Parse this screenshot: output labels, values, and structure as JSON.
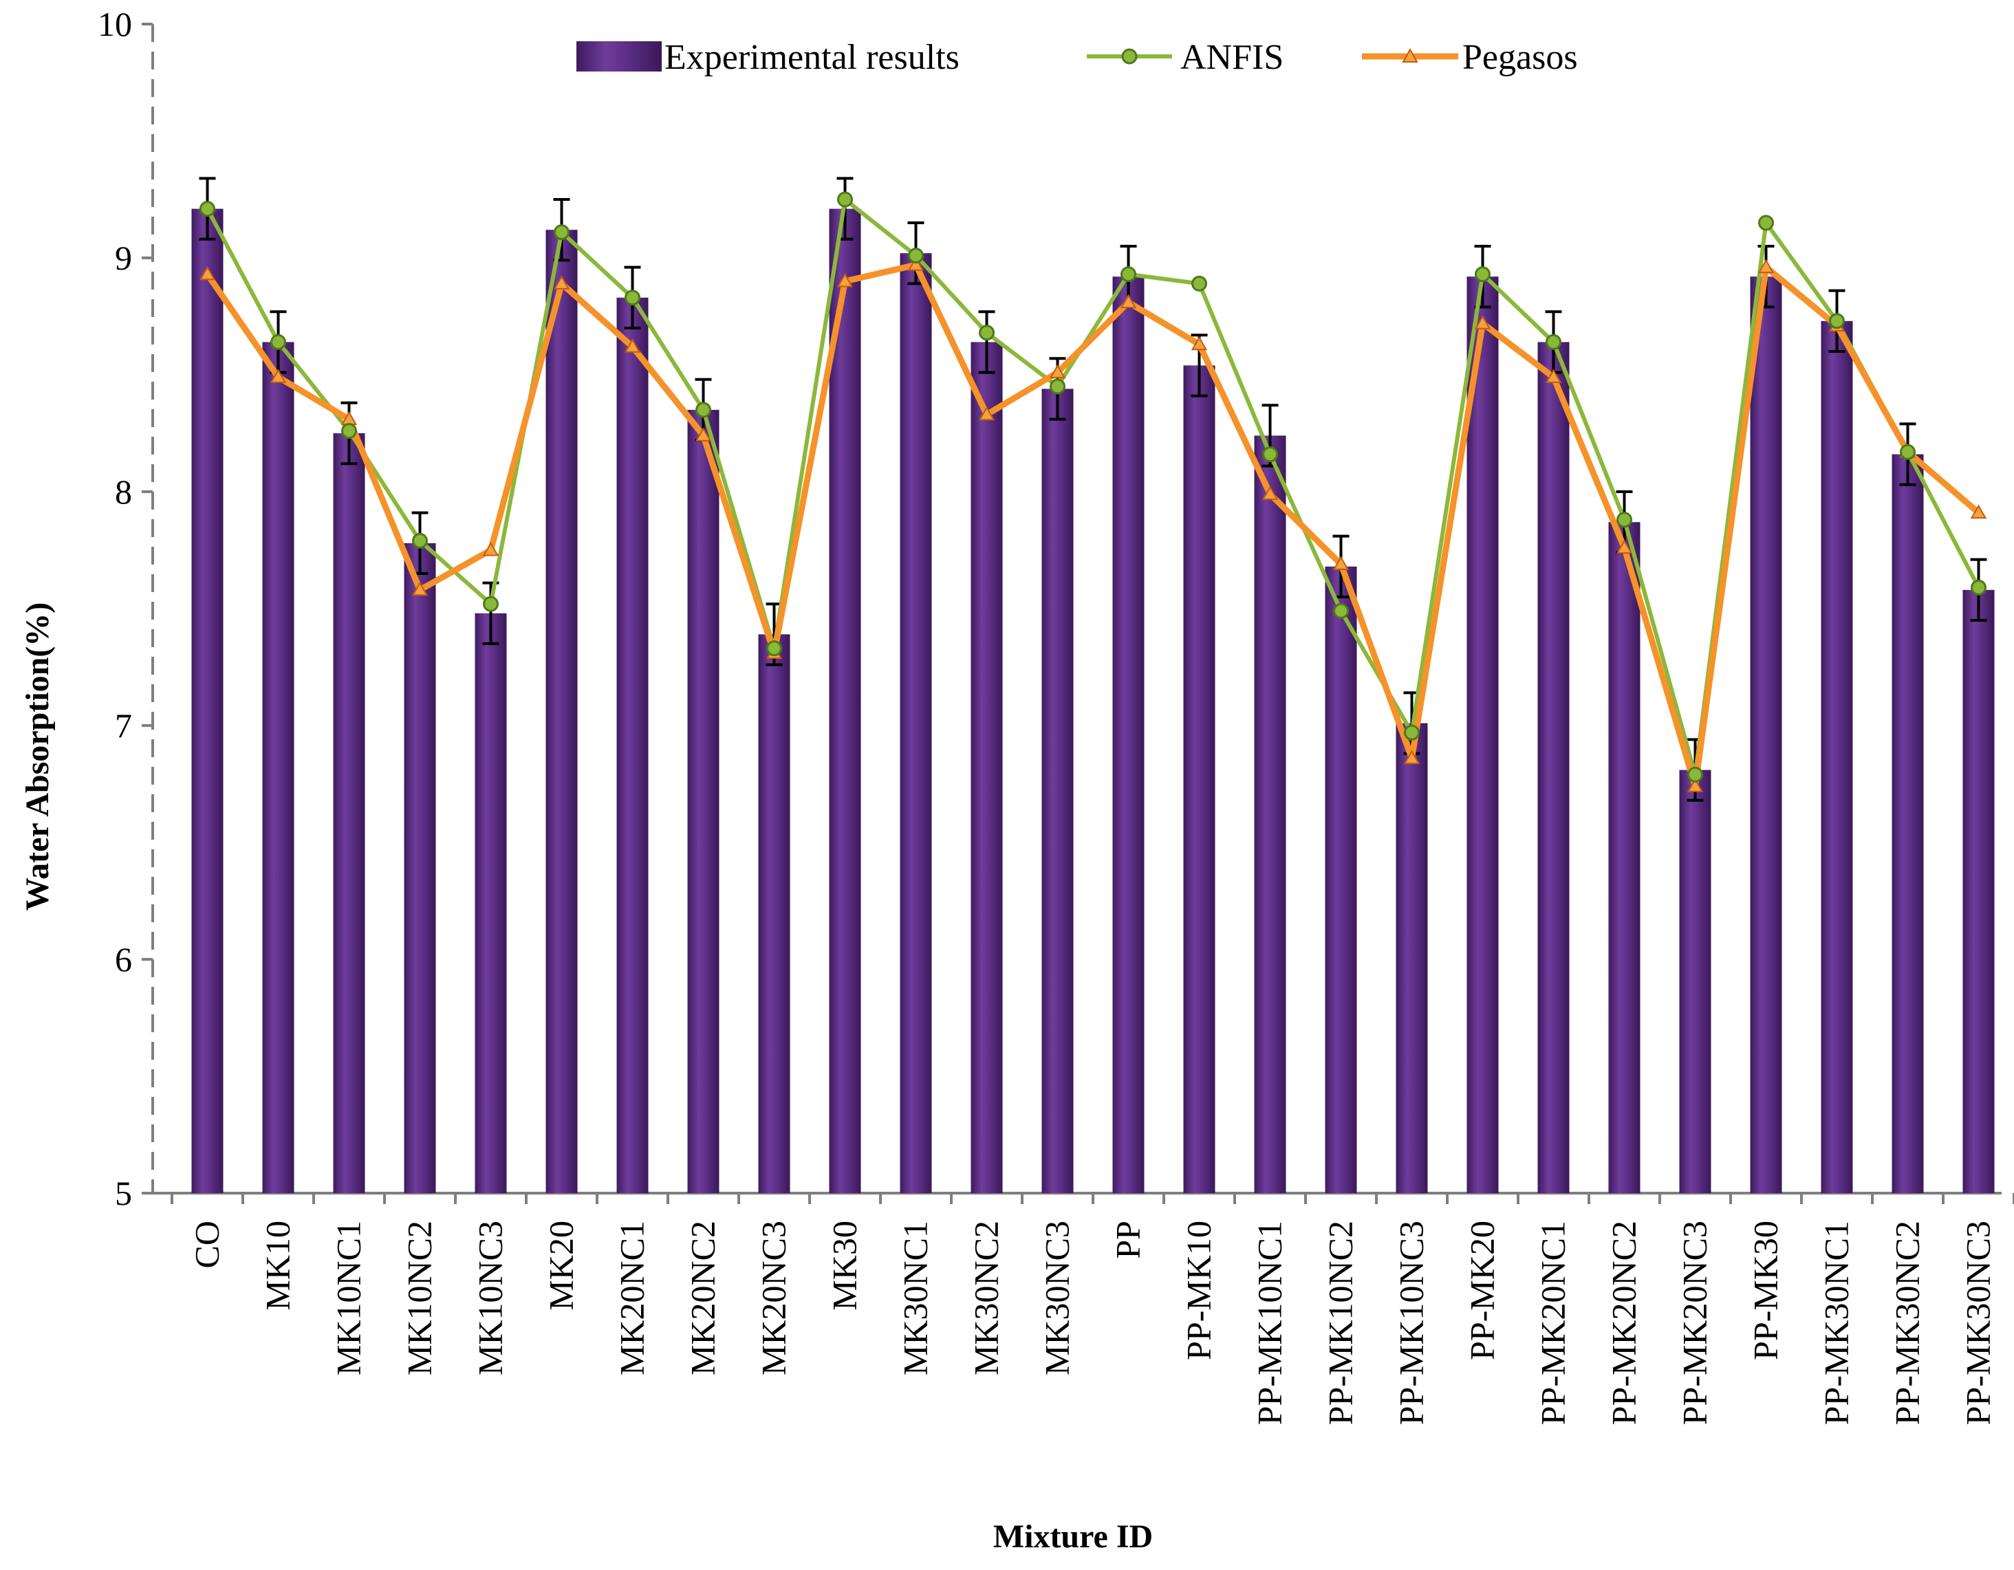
{
  "chart_data": {
    "type": "bar",
    "title": "",
    "xlabel": "Mixture ID",
    "ylabel": "Water Absorption(%)",
    "ylim": [
      5,
      10
    ],
    "yticks": [
      5,
      6,
      7,
      8,
      9,
      10
    ],
    "grid": false,
    "legend_position": "top-center",
    "categories": [
      "CO",
      "MK10",
      "MK10NC1",
      "MK10NC2",
      "MK10NC3",
      "MK20",
      "MK20NC1",
      "MK20NC2",
      "MK20NC3",
      "MK30",
      "MK30NC1",
      "MK30NC2",
      "MK30NC3",
      "PP",
      "PP-MK10",
      "PP-MK10NC1",
      "PP-MK10NC2",
      "PP-MK10NC3",
      "PP-MK20",
      "PP-MK20NC1",
      "PP-MK20NC2",
      "PP-MK20NC3",
      "PP-MK30",
      "PP-MK30NC1",
      "PP-MK30NC2",
      "PP-MK30NC3"
    ],
    "series": [
      {
        "name": "Experimental results",
        "kind": "bar",
        "color": "#5B2C83",
        "values": [
          9.21,
          8.64,
          8.25,
          7.78,
          7.48,
          9.12,
          8.83,
          8.35,
          7.39,
          9.21,
          9.02,
          8.64,
          8.44,
          8.92,
          8.54,
          8.24,
          7.68,
          7.01,
          8.92,
          8.64,
          7.87,
          6.81,
          8.92,
          8.73,
          8.16,
          7.58
        ],
        "error": [
          0.13,
          0.13,
          0.13,
          0.13,
          0.13,
          0.13,
          0.13,
          0.13,
          0.13,
          0.13,
          0.13,
          0.13,
          0.13,
          0.13,
          0.13,
          0.13,
          0.13,
          0.13,
          0.13,
          0.13,
          0.13,
          0.13,
          0.13,
          0.13,
          0.13,
          0.13
        ]
      },
      {
        "name": "ANFIS",
        "kind": "line",
        "marker": "circle",
        "color": "#8BB83A",
        "values": [
          9.21,
          8.64,
          8.26,
          7.79,
          7.52,
          9.11,
          8.83,
          8.35,
          7.33,
          9.25,
          9.01,
          8.68,
          8.45,
          8.93,
          8.89,
          8.16,
          7.49,
          6.97,
          8.93,
          8.64,
          7.88,
          6.79,
          9.15,
          8.73,
          8.17,
          7.59
        ]
      },
      {
        "name": "Pegasos",
        "kind": "line",
        "marker": "triangle",
        "color": "#F5922A",
        "values": [
          8.93,
          8.49,
          8.31,
          7.58,
          7.75,
          8.89,
          8.62,
          8.24,
          7.31,
          8.9,
          8.97,
          8.33,
          8.51,
          8.81,
          8.63,
          7.99,
          7.69,
          6.86,
          8.72,
          8.49,
          7.76,
          6.74,
          8.96,
          8.71,
          8.17,
          7.91
        ]
      }
    ]
  }
}
